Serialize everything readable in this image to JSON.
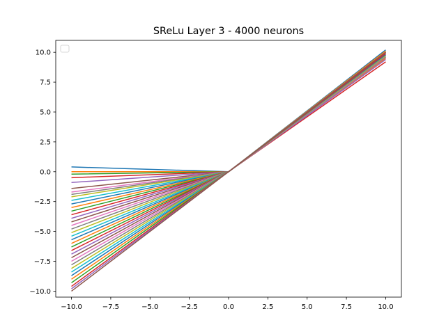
{
  "chart_data": {
    "type": "line",
    "title": "SReLu Layer 3 - 4000 neurons",
    "xlabel": "",
    "ylabel": "",
    "xlim": [
      -11.0,
      11.0
    ],
    "ylim": [
      -10.5,
      11.0
    ],
    "x_ticks": [
      -10.0,
      -7.5,
      -5.0,
      -2.5,
      0.0,
      2.5,
      5.0,
      7.5,
      10.0
    ],
    "y_ticks": [
      -10.0,
      -7.5,
      -5.0,
      -2.5,
      0.0,
      2.5,
      5.0,
      7.5,
      10.0
    ],
    "x_tick_labels": [
      "−10.0",
      "−7.5",
      "−5.0",
      "−2.5",
      "0.0",
      "2.5",
      "5.0",
      "7.5",
      "10.0"
    ],
    "y_tick_labels": [
      "−10.0",
      "−7.5",
      "−5.0",
      "−2.5",
      "0.0",
      "2.5",
      "5.0",
      "7.5",
      "10.0"
    ],
    "grid": false,
    "legend": {
      "placement": "upper-left",
      "entries": []
    },
    "x": [
      -10,
      0,
      10
    ],
    "color_cycle": [
      "#1f77b4",
      "#ff7f0e",
      "#2ca02c",
      "#d62728",
      "#9467bd",
      "#8c564b",
      "#e377c2",
      "#7f7f7f",
      "#bcbd22",
      "#17becf"
    ],
    "series": [
      {
        "values": [
          0.4,
          0,
          10.2
        ]
      },
      {
        "values": [
          0.0,
          0,
          10.1
        ]
      },
      {
        "values": [
          -0.2,
          0,
          9.9
        ]
      },
      {
        "values": [
          -0.5,
          0,
          9.2
        ]
      },
      {
        "values": [
          -0.9,
          0,
          9.5
        ]
      },
      {
        "values": [
          -1.4,
          0,
          10.0
        ]
      },
      {
        "values": [
          -1.7,
          0,
          9.8
        ]
      },
      {
        "values": [
          -1.9,
          0,
          9.6
        ]
      },
      {
        "values": [
          -2.1,
          0,
          10.1
        ]
      },
      {
        "values": [
          -2.4,
          0,
          9.7
        ]
      },
      {
        "values": [
          -2.7,
          0,
          9.9
        ]
      },
      {
        "values": [
          -3.0,
          0,
          9.5
        ]
      },
      {
        "values": [
          -3.3,
          0,
          10.0
        ]
      },
      {
        "values": [
          -3.6,
          0,
          9.8
        ]
      },
      {
        "values": [
          -3.9,
          0,
          9.4
        ]
      },
      {
        "values": [
          -4.2,
          0,
          9.9
        ]
      },
      {
        "values": [
          -4.5,
          0,
          9.7
        ]
      },
      {
        "values": [
          -4.8,
          0,
          10.0
        ]
      },
      {
        "values": [
          -5.1,
          0,
          9.6
        ]
      },
      {
        "values": [
          -5.4,
          0,
          9.9
        ]
      },
      {
        "values": [
          -5.7,
          0,
          9.8
        ]
      },
      {
        "values": [
          -6.0,
          0,
          10.1
        ]
      },
      {
        "values": [
          -6.3,
          0,
          9.7
        ]
      },
      {
        "values": [
          -6.6,
          0,
          9.9
        ]
      },
      {
        "values": [
          -6.9,
          0,
          9.6
        ]
      },
      {
        "values": [
          -7.2,
          0,
          10.0
        ]
      },
      {
        "values": [
          -7.5,
          0,
          9.8
        ]
      },
      {
        "values": [
          -7.8,
          0,
          9.9
        ]
      },
      {
        "values": [
          -8.1,
          0,
          9.7
        ]
      },
      {
        "values": [
          -8.4,
          0,
          10.0
        ]
      },
      {
        "values": [
          -8.7,
          0,
          9.8
        ]
      },
      {
        "values": [
          -9.0,
          0,
          9.9
        ]
      },
      {
        "values": [
          -9.3,
          0,
          10.0
        ]
      },
      {
        "values": [
          -9.6,
          0,
          9.9
        ]
      },
      {
        "values": [
          -9.8,
          0,
          10.0
        ]
      },
      {
        "values": [
          -10.0,
          0,
          10.0
        ]
      }
    ]
  }
}
